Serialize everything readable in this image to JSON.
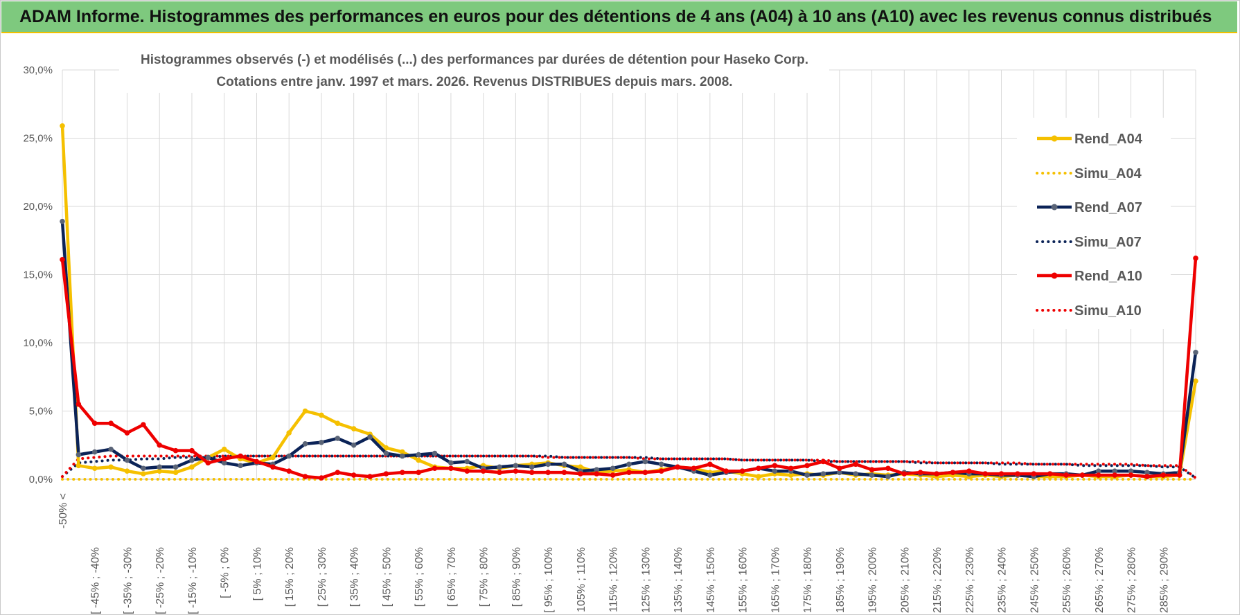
{
  "banner": {
    "title": "ADAM Informe. Histogrammes des performances en euros pour des détentions de 4 ans (A04) à 10 ans (A10) avec les revenus connus distribués"
  },
  "chart_data": {
    "type": "line",
    "title_line1": "Histogrammes observés (-) et modélisés (...) des performances par durées de détention pour Haseko Corp.",
    "title_line2": "Cotations entre janv. 1997 et mars. 2026.  Revenus DISTRIBUES depuis mars. 2008.",
    "ylim": [
      0,
      30
    ],
    "yticks": [
      "0,0%",
      "5,0%",
      "10,0%",
      "15,0%",
      "20,0%",
      "25,0%",
      "30,0%"
    ],
    "xtick_labels": [
      "-50% <",
      "[ -45% ; -40%",
      "[ -35% ; -30%",
      "[ -25% ; -20%",
      "[ -15% ; -10%",
      "[ -5% ; 0%",
      "[ 5% ; 10%",
      "[ 15% ; 20%",
      "[ 25% ; 30%",
      "[ 35% ; 40%",
      "[ 45% ; 50%",
      "[ 55% ; 60%",
      "[ 65% ; 70%",
      "[ 75% ; 80%",
      "[ 85% ; 90%",
      "[ 95% ; 100%",
      "[ 105% ; 110%",
      "[ 115% ; 120%",
      "[ 125% ; 130%",
      "[ 135% ; 140%",
      "[ 145% ; 150%",
      "[ 155% ; 160%",
      "[ 165% ; 170%",
      "[ 175% ; 180%",
      "[ 185% ; 190%",
      "[ 195% ; 200%",
      "[ 205% ; 210%",
      "[ 215% ; 220%",
      "[ 225% ; 230%",
      "[ 235% ; 240%",
      "[ 245% ; 250%",
      "[ 255% ; 260%",
      "[ 265% ; 270%",
      "[ 275% ; 280%",
      "[ 285% ; 290%"
    ],
    "n_points": 71,
    "colors": {
      "a04": "#f5c000",
      "a07": "#0b2357",
      "a10": "#ee0000"
    },
    "series": [
      {
        "name": "Rend_A04",
        "style": "solid",
        "color": "#f5c000",
        "values": [
          25.9,
          1.0,
          0.8,
          0.9,
          0.6,
          0.4,
          0.6,
          0.5,
          0.9,
          1.6,
          2.2,
          1.5,
          1.2,
          1.6,
          3.4,
          5.0,
          4.7,
          4.1,
          3.7,
          3.3,
          2.3,
          2.0,
          1.4,
          0.9,
          0.8,
          0.8,
          1.0,
          0.8,
          1.0,
          1.1,
          1.2,
          1.0,
          0.9,
          0.5,
          0.6,
          0.7,
          0.5,
          0.7,
          0.9,
          0.8,
          0.5,
          0.6,
          0.4,
          0.2,
          0.4,
          0.3,
          0.4,
          0.3,
          0.5,
          0.3,
          0.4,
          0.3,
          0.4,
          0.3,
          0.2,
          0.3,
          0.2,
          0.3,
          0.2,
          0.3,
          0.2,
          0.2,
          0.2,
          0.3,
          0.2,
          0.2,
          0.3,
          0.2,
          0.2,
          0.3,
          7.2
        ]
      },
      {
        "name": "Simu_A04",
        "style": "dotted",
        "color": "#f5c000",
        "values": [
          0.0,
          0.0,
          0.0,
          0.0,
          0.0,
          0.0,
          0.0,
          0.0,
          0.0,
          0.0,
          0.0,
          0.0,
          0.0,
          0.0,
          0.0,
          0.0,
          0.0,
          0.0,
          0.0,
          0.0,
          0.0,
          0.0,
          0.0,
          0.0,
          0.0,
          0.0,
          0.0,
          0.0,
          0.0,
          0.0,
          0.0,
          0.0,
          0.0,
          0.0,
          0.0,
          0.0,
          0.0,
          0.0,
          0.0,
          0.0,
          0.0,
          0.0,
          0.0,
          0.0,
          0.0,
          0.0,
          0.0,
          0.0,
          0.0,
          0.0,
          0.0,
          0.0,
          0.0,
          0.0,
          0.0,
          0.0,
          0.0,
          0.0,
          0.0,
          0.0,
          0.0,
          0.0,
          0.0,
          0.0,
          0.0,
          0.0,
          0.0,
          0.0,
          0.0,
          0.0,
          0.0
        ]
      },
      {
        "name": "Rend_A07",
        "style": "solid",
        "color": "#0b2357",
        "values": [
          18.9,
          1.8,
          2.0,
          2.2,
          1.4,
          0.8,
          0.9,
          0.9,
          1.4,
          1.6,
          1.2,
          1.0,
          1.2,
          1.1,
          1.7,
          2.6,
          2.7,
          3.0,
          2.5,
          3.1,
          1.9,
          1.7,
          1.8,
          1.9,
          1.2,
          1.3,
          0.8,
          0.9,
          1.0,
          0.9,
          1.1,
          1.1,
          0.6,
          0.7,
          0.8,
          1.1,
          1.3,
          1.1,
          0.9,
          0.6,
          0.3,
          0.5,
          0.6,
          0.8,
          0.6,
          0.6,
          0.3,
          0.4,
          0.5,
          0.4,
          0.3,
          0.2,
          0.5,
          0.4,
          0.4,
          0.5,
          0.4,
          0.4,
          0.3,
          0.3,
          0.2,
          0.4,
          0.4,
          0.3,
          0.6,
          0.6,
          0.6,
          0.5,
          0.4,
          0.5,
          9.3
        ]
      },
      {
        "name": "Simu_A07",
        "style": "dotted",
        "color": "#0b2357",
        "values": [
          0.2,
          1.2,
          1.3,
          1.4,
          1.4,
          1.5,
          1.5,
          1.6,
          1.6,
          1.6,
          1.7,
          1.7,
          1.7,
          1.7,
          1.7,
          1.7,
          1.7,
          1.7,
          1.7,
          1.7,
          1.7,
          1.7,
          1.7,
          1.7,
          1.7,
          1.7,
          1.7,
          1.7,
          1.7,
          1.7,
          1.7,
          1.6,
          1.6,
          1.6,
          1.6,
          1.6,
          1.6,
          1.5,
          1.5,
          1.5,
          1.5,
          1.5,
          1.4,
          1.4,
          1.4,
          1.4,
          1.4,
          1.3,
          1.3,
          1.3,
          1.3,
          1.3,
          1.3,
          1.2,
          1.2,
          1.2,
          1.2,
          1.2,
          1.1,
          1.1,
          1.1,
          1.1,
          1.1,
          1.0,
          1.0,
          1.0,
          1.0,
          1.0,
          0.9,
          0.9,
          0.1
        ]
      },
      {
        "name": "Rend_A10",
        "style": "solid",
        "color": "#ee0000",
        "values": [
          16.1,
          5.5,
          4.1,
          4.1,
          3.4,
          4.0,
          2.5,
          2.1,
          2.1,
          1.2,
          1.5,
          1.7,
          1.3,
          0.9,
          0.6,
          0.2,
          0.1,
          0.5,
          0.3,
          0.2,
          0.4,
          0.5,
          0.5,
          0.8,
          0.8,
          0.6,
          0.6,
          0.5,
          0.6,
          0.5,
          0.5,
          0.5,
          0.4,
          0.4,
          0.3,
          0.5,
          0.5,
          0.6,
          0.9,
          0.8,
          1.1,
          0.6,
          0.6,
          0.8,
          1.0,
          0.8,
          1.0,
          1.3,
          0.8,
          1.1,
          0.7,
          0.8,
          0.4,
          0.5,
          0.4,
          0.5,
          0.6,
          0.4,
          0.4,
          0.4,
          0.4,
          0.4,
          0.3,
          0.3,
          0.3,
          0.3,
          0.3,
          0.2,
          0.3,
          0.3,
          16.2
        ]
      },
      {
        "name": "Simu_A10",
        "style": "dotted",
        "color": "#ee0000",
        "values": [
          0.2,
          1.5,
          1.6,
          1.7,
          1.7,
          1.7,
          1.7,
          1.7,
          1.7,
          1.7,
          1.7,
          1.7,
          1.7,
          1.7,
          1.7,
          1.7,
          1.7,
          1.7,
          1.7,
          1.7,
          1.7,
          1.7,
          1.7,
          1.7,
          1.7,
          1.7,
          1.7,
          1.7,
          1.7,
          1.7,
          1.6,
          1.6,
          1.6,
          1.6,
          1.6,
          1.6,
          1.5,
          1.5,
          1.5,
          1.5,
          1.5,
          1.5,
          1.4,
          1.4,
          1.4,
          1.4,
          1.4,
          1.4,
          1.3,
          1.3,
          1.3,
          1.3,
          1.3,
          1.3,
          1.2,
          1.2,
          1.2,
          1.2,
          1.2,
          1.2,
          1.1,
          1.1,
          1.1,
          1.1,
          1.1,
          1.1,
          1.1,
          1.0,
          1.0,
          1.0,
          0.1
        ]
      }
    ],
    "legend_position": "right",
    "grid": true
  }
}
